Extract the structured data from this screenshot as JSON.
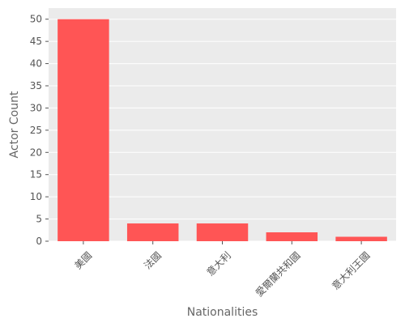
{
  "chart_data": {
    "type": "bar",
    "categories": [
      "美國",
      "法國",
      "意大利",
      "愛爾蘭共和國",
      "意大利王國"
    ],
    "values": [
      50,
      4,
      4,
      2,
      1
    ],
    "xlabel": "Nationalities",
    "ylabel": "Actor Count",
    "ylim": [
      0,
      52.5
    ],
    "yticks": [
      0,
      5,
      10,
      15,
      20,
      25,
      30,
      35,
      40,
      45,
      50
    ],
    "grid": true,
    "colors": {
      "bar": "#ff5555",
      "plot_background": "#ebebeb",
      "grid": "#ffffff",
      "text": "#555555",
      "label": "#666666"
    }
  }
}
